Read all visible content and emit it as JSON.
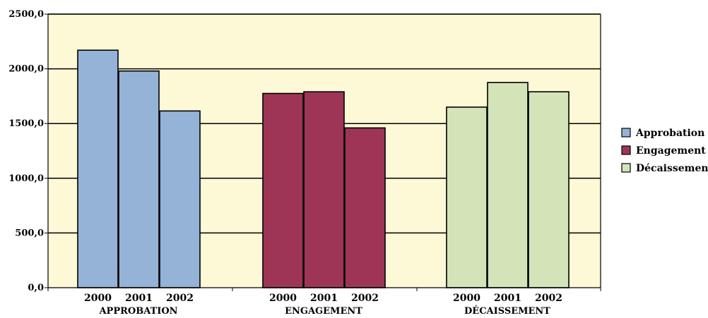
{
  "chart_data": {
    "type": "bar",
    "groups": [
      "APPROBATION",
      "ENGAGEMENT",
      "DÉCAISSEMENT"
    ],
    "subcategories": [
      "2000",
      "2001",
      "2002"
    ],
    "series": [
      {
        "name": "Approbation",
        "color": "#95b3d7",
        "group": "APPROBATION",
        "values": [
          2170,
          1980,
          1615
        ]
      },
      {
        "name": "Engagement",
        "color": "#9e3557",
        "group": "ENGAGEMENT",
        "values": [
          1775,
          1790,
          1460
        ]
      },
      {
        "name": "Décaissement",
        "color": "#d3e4b9",
        "group": "DÉCAISSEMENT",
        "values": [
          1650,
          1875,
          1790
        ]
      }
    ],
    "ylim": [
      0,
      2500
    ],
    "yticks": [
      0,
      500,
      1000,
      1500,
      2000,
      2500
    ],
    "ytick_labels": [
      "0,0",
      "500,0",
      "1000,0",
      "1500,0",
      "2000,0",
      "2500,0"
    ],
    "grid": true,
    "legend_position": "right",
    "plot_background": "#fdf8d6"
  }
}
